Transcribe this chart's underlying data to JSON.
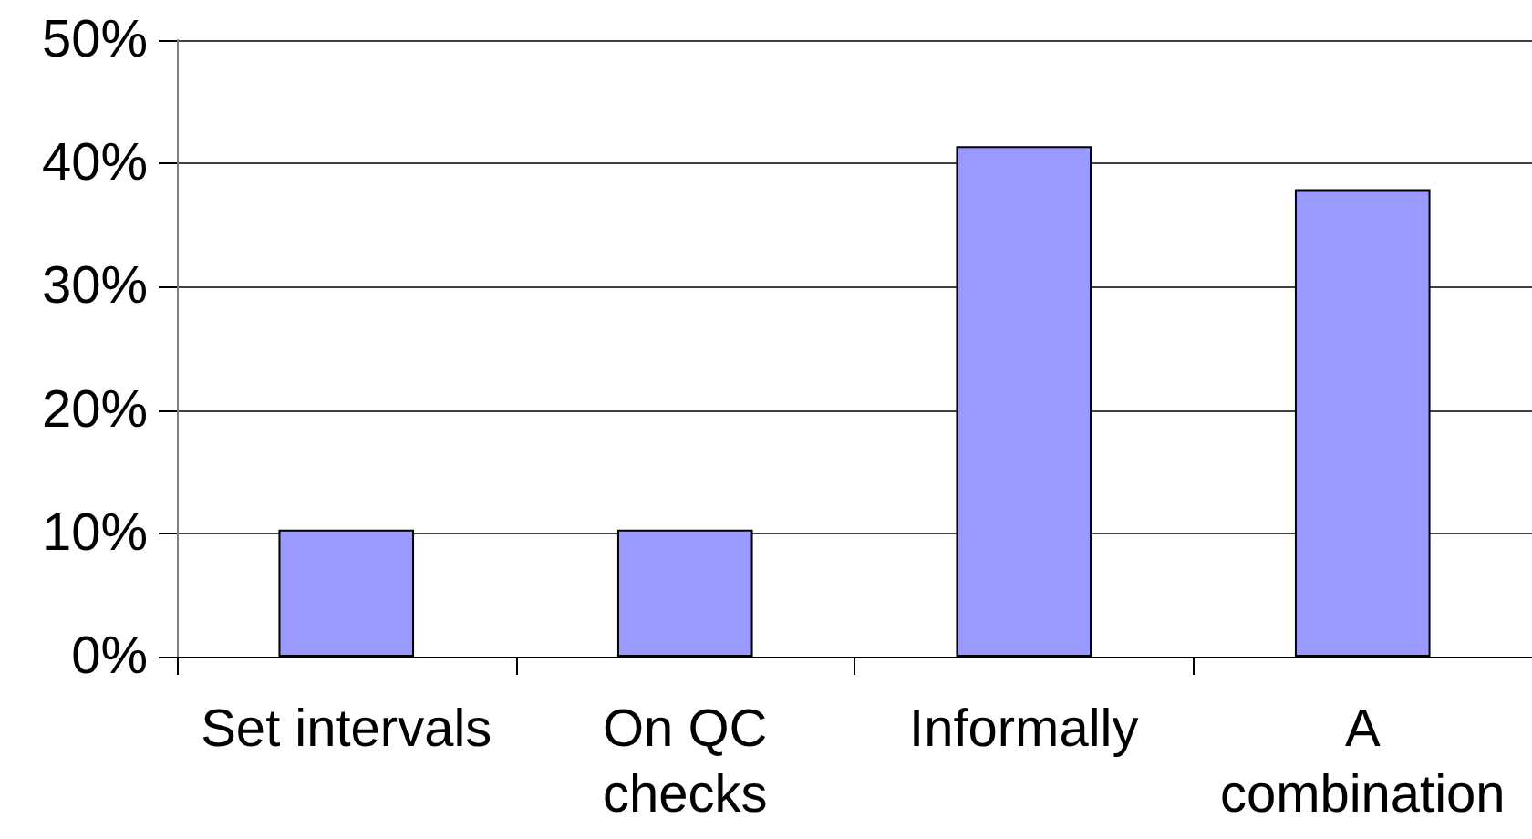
{
  "chart_data": {
    "type": "bar",
    "categories": [
      "Set intervals",
      "On QC\nchecks",
      "Informally",
      "A\ncombination"
    ],
    "values": [
      10.3,
      10.3,
      41.4,
      37.9
    ],
    "color": "#9999ff",
    "ylim": [
      0,
      50
    ],
    "yticks": [
      {
        "value": 0,
        "label": "0%"
      },
      {
        "value": 10,
        "label": "10%"
      },
      {
        "value": 20,
        "label": "20%"
      },
      {
        "value": 30,
        "label": "30%"
      },
      {
        "value": 40,
        "label": "40%"
      },
      {
        "value": 50,
        "label": "50%"
      }
    ],
    "grid": "y"
  }
}
